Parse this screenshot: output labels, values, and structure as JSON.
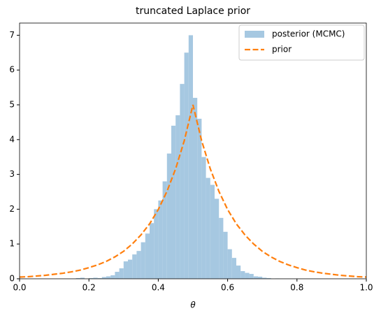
{
  "chart_data": {
    "type": "histogram",
    "title": "truncated Laplace prior",
    "xlabel": "θ",
    "xlim": [
      0,
      1
    ],
    "xticks": [
      {
        "value": 0,
        "label": "0.0"
      },
      0.2,
      0.4,
      0.6,
      0.8,
      {
        "value": 1,
        "label": "1.0"
      }
    ],
    "ylim": [
      0,
      7.35
    ],
    "yticks": [
      0,
      1,
      2,
      3,
      4,
      5,
      6,
      7
    ],
    "legend": "upper right",
    "series": [
      {
        "name": "posterior (MCMC)",
        "type": "histogram",
        "color": "#a6c8e1",
        "bins": [
          0.15,
          0.1625,
          0.175,
          0.1875,
          0.2,
          0.2125,
          0.225,
          0.2375,
          0.25,
          0.2625,
          0.275,
          0.2875,
          0.3,
          0.3125,
          0.325,
          0.3375,
          0.35,
          0.3625,
          0.375,
          0.3875,
          0.4,
          0.4125,
          0.425,
          0.4375,
          0.45,
          0.4625,
          0.475,
          0.4875,
          0.5,
          0.5125,
          0.525,
          0.5375,
          0.55,
          0.5625,
          0.575,
          0.5875,
          0.6,
          0.6125,
          0.625,
          0.6375,
          0.65,
          0.6625,
          0.675,
          0.6875,
          0.7,
          0.7125,
          0.725,
          0.7375,
          0.75
        ],
        "values": [
          0,
          0.02,
          0.03,
          0,
          0.02,
          0.03,
          0.02,
          0.05,
          0.07,
          0.1,
          0.2,
          0.3,
          0.5,
          0.55,
          0.7,
          0.8,
          1.05,
          1.3,
          1.6,
          2.0,
          2.25,
          2.8,
          3.6,
          4.4,
          4.7,
          5.6,
          6.5,
          7.0,
          5.2,
          4.6,
          3.5,
          2.9,
          2.7,
          2.3,
          1.75,
          1.35,
          0.85,
          0.6,
          0.38,
          0.22,
          0.17,
          0.14,
          0.07,
          0.06,
          0.03,
          0.02,
          0,
          0.01
        ]
      },
      {
        "name": "prior",
        "type": "line",
        "color": "#ff7f0e",
        "dashed": true,
        "x": [
          0,
          0.025,
          0.05,
          0.075,
          0.1,
          0.125,
          0.15,
          0.175,
          0.2,
          0.225,
          0.25,
          0.275,
          0.3,
          0.325,
          0.35,
          0.375,
          0.4,
          0.425,
          0.45,
          0.475,
          0.5,
          0.525,
          0.55,
          0.575,
          0.6,
          0.625,
          0.65,
          0.675,
          0.7,
          0.725,
          0.75,
          0.775,
          0.8,
          0.825,
          0.85,
          0.875,
          0.9,
          0.925,
          0.95,
          0.975,
          1
        ],
        "values": [
          0.05,
          0.06,
          0.08,
          0.1,
          0.13,
          0.16,
          0.2,
          0.25,
          0.32,
          0.4,
          0.5,
          0.63,
          0.79,
          1.0,
          1.26,
          1.58,
          1.99,
          2.51,
          3.16,
          3.97,
          5,
          3.97,
          3.16,
          2.51,
          1.99,
          1.58,
          1.26,
          1.0,
          0.79,
          0.63,
          0.5,
          0.4,
          0.32,
          0.25,
          0.2,
          0.16,
          0.13,
          0.1,
          0.08,
          0.06,
          0.05
        ]
      }
    ]
  }
}
